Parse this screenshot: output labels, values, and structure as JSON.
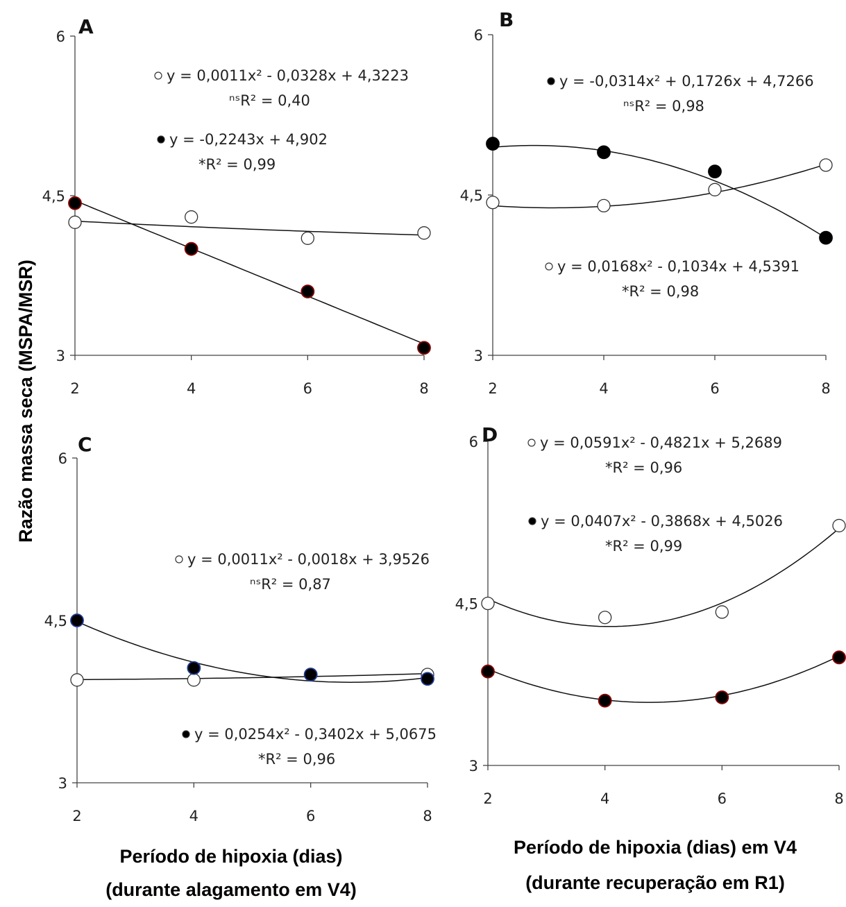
{
  "y_axis_label": "Razão massa seca (MSPA/MSR)",
  "x_axis_labels": {
    "left": [
      "Período de hipoxia (dias)",
      "(durante alagamento em V4)"
    ],
    "right": [
      "Período de hipoxia (dias) em V4",
      "(durante recuperação em R1)"
    ]
  },
  "colors": {
    "open_marker_fill": "#ffffff",
    "closed_marker_fill": "#000000",
    "closed_marker_edge_red": "#8b0000",
    "closed_marker_edge_blue": "#1f3a93"
  },
  "chart_data": [
    {
      "panel": "A",
      "type": "scatter",
      "x": [
        2,
        4,
        6,
        8
      ],
      "xlim": [
        2,
        8
      ],
      "xticks": [
        "2",
        "4",
        "6",
        "8"
      ],
      "ylim": [
        3,
        6
      ],
      "yticks": [
        "3",
        "4,5",
        "6"
      ],
      "series": [
        {
          "marker": "open",
          "values": [
            4.25,
            4.3,
            4.1,
            4.15
          ],
          "fit": {
            "a": 0.0011,
            "b": -0.0328,
            "c": 4.3223
          },
          "equation": "y = 0,0011x² - 0,0328x + 4,3223",
          "r2_label": "ⁿˢR² = 0,40"
        },
        {
          "marker": "closed",
          "values": [
            4.43,
            4.0,
            3.6,
            3.07
          ],
          "fit": {
            "a": 0,
            "b": -0.2243,
            "c": 4.902
          },
          "equation": "y = -0,2243x + 4,902",
          "r2_label": "*R² = 0,99"
        }
      ]
    },
    {
      "panel": "B",
      "type": "scatter",
      "x": [
        2,
        4,
        6,
        8
      ],
      "xlim": [
        2,
        8
      ],
      "xticks": [
        "2",
        "4",
        "6",
        "8"
      ],
      "ylim": [
        3,
        6
      ],
      "yticks": [
        "3",
        "4,5",
        "6"
      ],
      "series": [
        {
          "marker": "closed",
          "values": [
            4.98,
            4.9,
            4.72,
            4.1
          ],
          "fit": {
            "a": -0.0314,
            "b": 0.1726,
            "c": 4.7266
          },
          "equation": "y = -0,0314x² + 0,1726x + 4,7266",
          "r2_label": "ⁿˢR² = 0,98"
        },
        {
          "marker": "open",
          "values": [
            4.43,
            4.4,
            4.55,
            4.78
          ],
          "fit": {
            "a": 0.0168,
            "b": -0.1034,
            "c": 4.5391
          },
          "equation": "y = 0,0168x² - 0,1034x + 4,5391",
          "r2_label": "*R² = 0,98"
        }
      ]
    },
    {
      "panel": "C",
      "type": "scatter",
      "x": [
        2,
        4,
        6,
        8
      ],
      "xlim": [
        2,
        8
      ],
      "xticks": [
        "2",
        "4",
        "6",
        "8"
      ],
      "ylim": [
        3,
        6
      ],
      "yticks": [
        "3",
        "4,5",
        "6"
      ],
      "series": [
        {
          "marker": "open",
          "values": [
            3.95,
            3.95,
            4.0,
            4.0
          ],
          "fit": {
            "a": 0.0011,
            "b": -0.0018,
            "c": 3.9526
          },
          "equation": "y = 0,0011x² - 0,0018x + 3,9526",
          "r2_label": "ⁿˢR² = 0,87"
        },
        {
          "marker": "closed",
          "values": [
            4.5,
            4.06,
            4.0,
            3.96
          ],
          "fit": {
            "a": 0.0254,
            "b": -0.3402,
            "c": 5.0675
          },
          "equation": "y = 0,0254x² - 0,3402x + 5,0675",
          "r2_label": "*R² = 0,96"
        }
      ]
    },
    {
      "panel": "D",
      "type": "scatter",
      "x": [
        2,
        4,
        6,
        8
      ],
      "xlim": [
        2,
        8
      ],
      "xticks": [
        "2",
        "4",
        "6",
        "8"
      ],
      "ylim": [
        3,
        6
      ],
      "yticks": [
        "3",
        "4,5",
        "6"
      ],
      "series": [
        {
          "marker": "open",
          "values": [
            4.5,
            4.37,
            4.42,
            5.22
          ],
          "fit": {
            "a": 0.0591,
            "b": -0.4821,
            "c": 5.2689
          },
          "equation": "y = 0,0591x² - 0,4821x + 5,2689",
          "r2_label": "*R² = 0,96"
        },
        {
          "marker": "closed",
          "values": [
            3.87,
            3.6,
            3.63,
            4.0
          ],
          "fit": {
            "a": 0.0407,
            "b": -0.3868,
            "c": 4.5026
          },
          "equation": "y = 0,0407x² - 0,3868x + 4,5026",
          "r2_label": "*R² = 0,99"
        }
      ]
    }
  ]
}
